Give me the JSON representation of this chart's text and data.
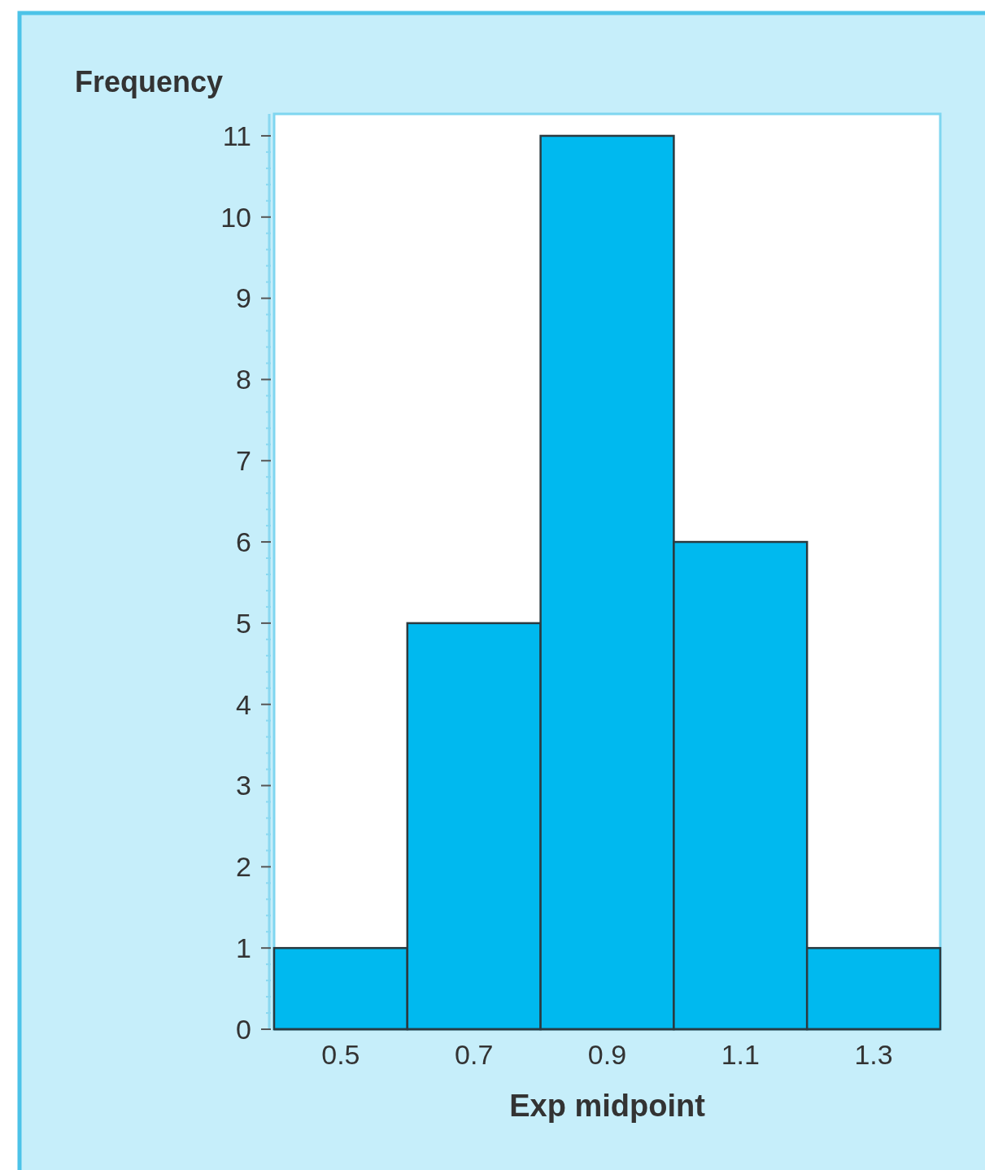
{
  "chart_data": {
    "type": "histogram",
    "xlabel": "Exp midpoint",
    "ylabel": "Frequency",
    "bins": [
      0.4,
      0.6,
      0.8,
      1.0,
      1.2,
      1.4
    ],
    "values": [
      1,
      5,
      11,
      6,
      1
    ],
    "color": "#00b9ef",
    "xlim": [
      0.4,
      1.4
    ],
    "xticks": [
      0.5,
      0.7,
      0.9,
      1.1,
      1.3
    ],
    "ylim": [
      0,
      11.27
    ],
    "yticks": [
      0,
      {
        "value": 0.2,
        "label": null
      },
      {
        "value": 0.4,
        "label": null
      },
      {
        "value": 0.6,
        "label": null
      },
      {
        "value": 0.8,
        "label": null
      },
      1,
      {
        "value": 1.2,
        "label": null
      },
      {
        "value": 1.4,
        "label": null
      },
      {
        "value": 1.6,
        "label": null
      },
      {
        "value": 1.8,
        "label": null
      },
      2,
      {
        "value": 2.2,
        "label": null
      },
      {
        "value": 2.4,
        "label": null
      },
      {
        "value": 2.6,
        "label": null
      },
      {
        "value": 2.8,
        "label": null
      },
      3,
      {
        "value": 3.2,
        "label": null
      },
      {
        "value": 3.4,
        "label": null
      },
      {
        "value": 3.6,
        "label": null
      },
      {
        "value": 3.8,
        "label": null
      },
      4,
      {
        "value": 4.2,
        "label": null
      },
      {
        "value": 4.4,
        "label": null
      },
      {
        "value": 4.6,
        "label": null
      },
      {
        "value": 4.8,
        "label": null
      },
      5,
      {
        "value": 5.2,
        "label": null
      },
      {
        "value": 5.4,
        "label": null
      },
      {
        "value": 5.6,
        "label": null
      },
      {
        "value": 5.8,
        "label": null
      },
      6,
      {
        "value": 6.2,
        "label": null
      },
      {
        "value": 6.4,
        "label": null
      },
      {
        "value": 6.6,
        "label": null
      },
      {
        "value": 6.8,
        "label": null
      },
      7,
      {
        "value": 7.2,
        "label": null
      },
      {
        "value": 7.4,
        "label": null
      },
      {
        "value": 7.6,
        "label": null
      },
      {
        "value": 7.8,
        "label": null
      },
      8,
      {
        "value": 8.2,
        "label": null
      },
      {
        "value": 8.4,
        "label": null
      },
      {
        "value": 8.6,
        "label": null
      },
      {
        "value": 8.8,
        "label": null
      },
      9,
      {
        "value": 9.2,
        "label": null
      },
      {
        "value": 9.4,
        "label": null
      },
      {
        "value": 9.6,
        "label": null
      },
      {
        "value": 9.8,
        "label": null
      },
      10,
      {
        "value": 10.2,
        "label": null
      },
      {
        "value": 10.4,
        "label": null
      },
      {
        "value": 10.6,
        "label": null
      },
      {
        "value": 10.8,
        "label": null
      },
      11
    ],
    "grid": false
  }
}
